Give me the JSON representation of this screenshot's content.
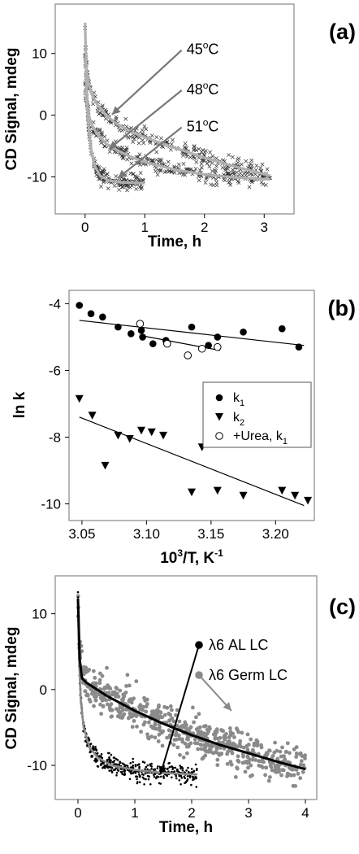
{
  "chart_data": [
    {
      "id": "a",
      "type": "scatter",
      "panel_label": "(a)",
      "xlabel": "Time, h",
      "ylabel": "CD Signal, mdeg",
      "xlim": [
        -0.5,
        3.5
      ],
      "ylim": [
        -16,
        18
      ],
      "xticks": [
        "0",
        "1",
        "2",
        "3"
      ],
      "xtick_values": [
        0,
        1,
        2,
        3
      ],
      "yticks": [
        "10",
        "0",
        "-10"
      ],
      "ytick_values": [
        10,
        0,
        -10
      ],
      "annotations": [
        {
          "text": "45°C",
          "base": "45",
          "sup": "o",
          "suffix": "C",
          "label_x": 1.7,
          "label_y": 10,
          "arrow_to": [
            0.45,
            0.1
          ]
        },
        {
          "text": "48°C",
          "base": "48",
          "sup": "o",
          "suffix": "C",
          "label_x": 1.7,
          "label_y": 3.5,
          "arrow_to": [
            0.4,
            -5.5
          ]
        },
        {
          "text": "51°C",
          "base": "51",
          "sup": "o",
          "suffix": "C",
          "label_x": 1.7,
          "label_y": -2.5,
          "arrow_to": [
            0.55,
            -10.2
          ]
        }
      ],
      "series": [
        {
          "condition": "45",
          "t_end": 3.1,
          "plateau": -10.3,
          "fit": [
            [
              0.0,
              9.5
            ],
            [
              0.05,
              5.5
            ],
            [
              0.1,
              3.6
            ],
            [
              0.2,
              1.8
            ],
            [
              0.35,
              0.0
            ],
            [
              0.5,
              -1.2
            ],
            [
              0.75,
              -2.6
            ],
            [
              1.0,
              -3.6
            ],
            [
              1.5,
              -5.3
            ],
            [
              2.0,
              -6.9
            ],
            [
              2.5,
              -8.3
            ],
            [
              3.1,
              -9.8
            ]
          ]
        },
        {
          "condition": "48",
          "t_end": 3.1,
          "plateau": -10.5,
          "fit": [
            [
              0.0,
              4.0
            ],
            [
              0.05,
              0.5
            ],
            [
              0.1,
              -1.3
            ],
            [
              0.2,
              -3.0
            ],
            [
              0.35,
              -4.6
            ],
            [
              0.5,
              -5.5
            ],
            [
              0.75,
              -6.7
            ],
            [
              1.0,
              -7.6
            ],
            [
              1.5,
              -8.8
            ],
            [
              2.0,
              -9.6
            ],
            [
              2.5,
              -10.1
            ],
            [
              3.1,
              -10.4
            ]
          ]
        },
        {
          "condition": "51",
          "t_end": 1.0,
          "plateau": -11.0,
          "fit": [
            [
              0.0,
              15.0
            ],
            [
              0.02,
              6.0
            ],
            [
              0.05,
              -1.0
            ],
            [
              0.1,
              -5.5
            ],
            [
              0.15,
              -8.0
            ],
            [
              0.25,
              -9.8
            ],
            [
              0.4,
              -10.6
            ],
            [
              0.6,
              -10.9
            ],
            [
              1.0,
              -11.0
            ]
          ]
        }
      ]
    },
    {
      "id": "b",
      "type": "scatter",
      "panel_label": "(b)",
      "xlabel": "10³/T, K⁻¹",
      "xlabel_base": "10",
      "xlabel_sup": "3",
      "xlabel_mid": "/T, K",
      "xlabel_sup2": "-1",
      "ylabel": "ln k",
      "xlim": [
        3.04,
        3.23
      ],
      "ylim": [
        -10.5,
        -3.6
      ],
      "xticks": [
        "3.05",
        "3.10",
        "3.15",
        "3.20"
      ],
      "xtick_values": [
        3.05,
        3.1,
        3.15,
        3.2
      ],
      "yticks": [
        "-4",
        "-6",
        "-8",
        "-10"
      ],
      "ytick_values": [
        -4,
        -6,
        -8,
        -10
      ],
      "legend": [
        {
          "label_base": "k",
          "label_sub": "1",
          "marker": "filled-circle"
        },
        {
          "label_base": "k",
          "label_sub": "2",
          "marker": "filled-triangle-down"
        },
        {
          "label_base": "+Urea, k",
          "label_sub": "1",
          "marker": "open-circle"
        }
      ],
      "series": [
        {
          "legend_index": 0,
          "x": [
            3.048,
            3.057,
            3.066,
            3.078,
            3.088,
            3.096,
            3.097,
            3.105,
            3.115,
            3.135,
            3.148,
            3.155,
            3.175,
            3.205,
            3.218
          ],
          "y": [
            -4.05,
            -4.3,
            -4.4,
            -4.7,
            -4.9,
            -4.8,
            -5.0,
            -5.2,
            -5.1,
            -4.7,
            -5.25,
            -5.0,
            -4.85,
            -4.75,
            -5.3
          ]
        },
        {
          "legend_index": 1,
          "x": [
            3.048,
            3.058,
            3.068,
            3.078,
            3.087,
            3.096,
            3.104,
            3.113,
            3.135,
            3.143,
            3.155,
            3.175,
            3.205,
            3.215,
            3.225
          ],
          "y": [
            -6.85,
            -7.35,
            -8.85,
            -7.95,
            -8.05,
            -7.8,
            -7.85,
            -7.95,
            -9.65,
            -8.3,
            -9.6,
            -9.75,
            -9.6,
            -9.75,
            -9.9
          ]
        },
        {
          "legend_index": 2,
          "x": [
            3.095,
            3.116,
            3.132,
            3.143,
            3.155
          ],
          "y": [
            -4.6,
            -5.2,
            -5.55,
            -5.35,
            -5.3
          ]
        }
      ],
      "fit_lines": [
        {
          "x": [
            3.048,
            3.222
          ],
          "y": [
            -4.5,
            -5.25
          ]
        },
        {
          "x": [
            3.095,
            3.157
          ],
          "y": [
            -4.95,
            -5.4
          ]
        },
        {
          "x": [
            3.048,
            3.222
          ],
          "y": [
            -7.4,
            -10.05
          ]
        }
      ]
    },
    {
      "id": "c",
      "type": "scatter",
      "panel_label": "(c)",
      "xlabel": "Time, h",
      "ylabel": "CD Signal, mdeg",
      "xlim": [
        -0.4,
        4.2
      ],
      "ylim": [
        -14.5,
        15
      ],
      "xticks": [
        "0",
        "1",
        "2",
        "3",
        "4"
      ],
      "xtick_values": [
        0,
        1,
        2,
        3,
        4
      ],
      "yticks": [
        "10",
        "0",
        "-10"
      ],
      "ytick_values": [
        10,
        0,
        -10
      ],
      "legend": [
        {
          "label": "λ6 AL LC",
          "color": "#000000"
        },
        {
          "label": "λ6 Germ LC",
          "color": "#8a8a8a"
        }
      ],
      "annotation_arrows": [
        {
          "from_legend_index": 0,
          "to": [
            1.45,
            -11.2
          ]
        },
        {
          "from_legend_index": 1,
          "to": [
            2.7,
            -2.8
          ]
        }
      ],
      "series": [
        {
          "name": "λ6 AL LC",
          "t_end": 2.1,
          "plateau": -11.2,
          "fit": [
            [
              0.0,
              12.0
            ],
            [
              0.02,
              4.0
            ],
            [
              0.05,
              -1.5
            ],
            [
              0.1,
              -5.0
            ],
            [
              0.2,
              -7.6
            ],
            [
              0.35,
              -9.0
            ],
            [
              0.6,
              -10.0
            ],
            [
              1.0,
              -10.6
            ],
            [
              1.5,
              -11.0
            ],
            [
              2.1,
              -11.2
            ]
          ]
        },
        {
          "name": "λ6 Germ LC",
          "t_end": 4.0,
          "plateau": -10.5,
          "fit": [
            [
              0.0,
              12.0
            ],
            [
              0.03,
              4.0
            ],
            [
              0.07,
              1.5
            ],
            [
              0.15,
              0.9
            ],
            [
              0.5,
              -0.8
            ],
            [
              1.0,
              -2.8
            ],
            [
              1.5,
              -4.5
            ],
            [
              2.0,
              -6.0
            ],
            [
              2.5,
              -7.3
            ],
            [
              3.0,
              -8.4
            ],
            [
              3.5,
              -9.5
            ],
            [
              4.0,
              -10.5
            ]
          ]
        }
      ]
    }
  ]
}
